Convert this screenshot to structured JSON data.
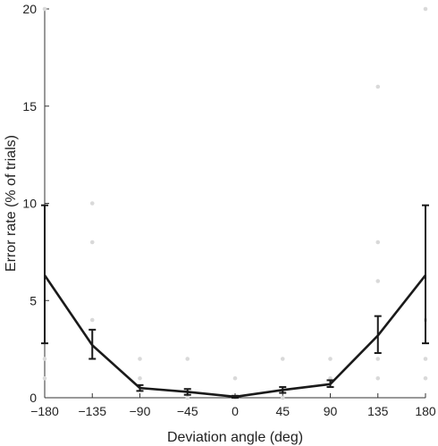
{
  "chart_data": {
    "type": "line",
    "title": "",
    "xlabel": "Deviation angle (deg)",
    "ylabel": "Error rate (% of trials)",
    "xlim": [
      -180,
      180
    ],
    "ylim": [
      0,
      20
    ],
    "xticks": [
      -180,
      -135,
      -90,
      -45,
      0,
      45,
      90,
      135,
      180
    ],
    "xtick_labels": [
      "−180",
      "−135",
      "−90",
      "−45",
      "0",
      "45",
      "90",
      "135",
      "180"
    ],
    "yticks": [
      0,
      5,
      10,
      15,
      20
    ],
    "ytick_labels": [
      "0",
      "5",
      "10",
      "15",
      "20"
    ],
    "grid": false,
    "legend": "none",
    "series": [
      {
        "x": [
          -180,
          -135,
          -90,
          -45,
          0,
          45,
          90,
          135,
          180
        ],
        "y": [
          6.3,
          2.7,
          0.5,
          0.3,
          0.05,
          0.4,
          0.7,
          3.2,
          6.3
        ],
        "err_low": [
          2.8,
          2.0,
          0.35,
          0.15,
          0.0,
          0.25,
          0.55,
          2.3,
          2.8
        ],
        "err_high": [
          9.9,
          3.5,
          0.65,
          0.45,
          0.1,
          0.55,
          0.9,
          4.2,
          9.9
        ],
        "color": "#1a1a1a"
      }
    ],
    "individual_points": {
      "color": "#d9d9d9",
      "points": [
        {
          "x": -180,
          "y": 20
        },
        {
          "x": -180,
          "y": 2
        },
        {
          "x": -180,
          "y": 1
        },
        {
          "x": -135,
          "y": 10
        },
        {
          "x": -135,
          "y": 8
        },
        {
          "x": -135,
          "y": 4
        },
        {
          "x": -90,
          "y": 2
        },
        {
          "x": -90,
          "y": 1
        },
        {
          "x": -45,
          "y": 2
        },
        {
          "x": -45,
          "y": 0
        },
        {
          "x": 0,
          "y": 1
        },
        {
          "x": 0,
          "y": 0
        },
        {
          "x": 45,
          "y": 2
        },
        {
          "x": 45,
          "y": 0
        },
        {
          "x": 90,
          "y": 2
        },
        {
          "x": 90,
          "y": 1
        },
        {
          "x": 135,
          "y": 16
        },
        {
          "x": 135,
          "y": 8
        },
        {
          "x": 135,
          "y": 6
        },
        {
          "x": 135,
          "y": 2
        },
        {
          "x": 135,
          "y": 1
        },
        {
          "x": 180,
          "y": 20
        },
        {
          "x": 180,
          "y": 4
        },
        {
          "x": 180,
          "y": 2
        },
        {
          "x": 180,
          "y": 1
        }
      ]
    }
  }
}
